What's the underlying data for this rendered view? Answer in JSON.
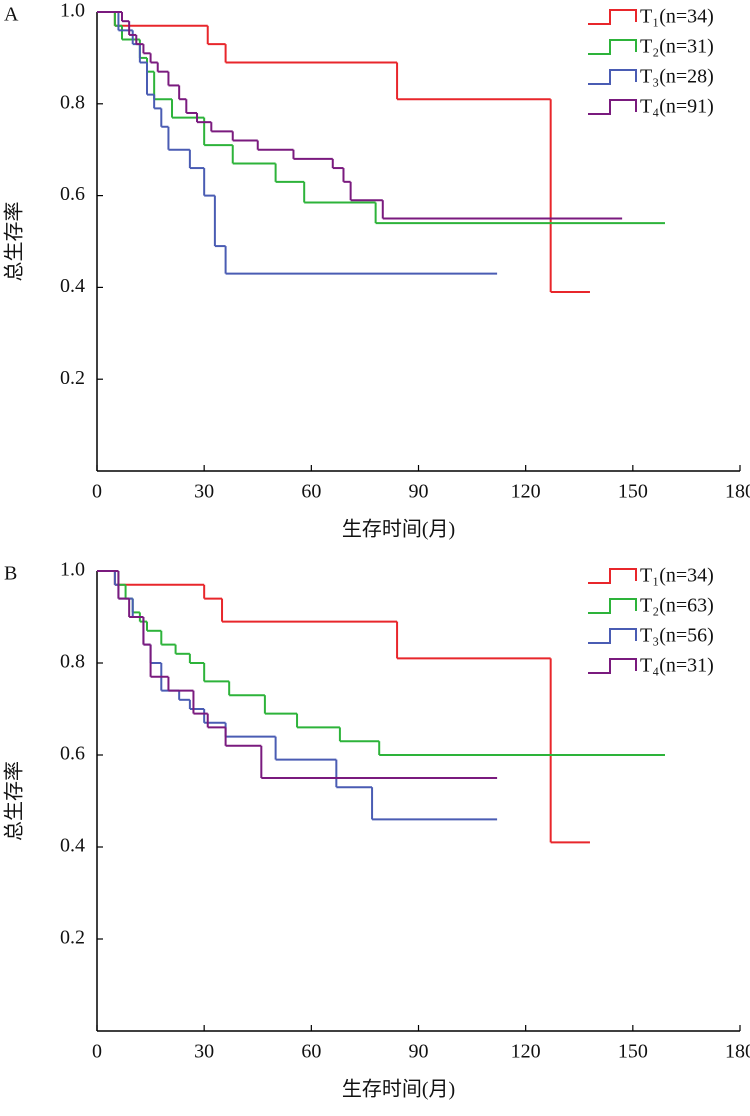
{
  "chart_data": [
    {
      "type": "line",
      "step": "post",
      "panel": "A",
      "xlabel": "生存时间(月)",
      "ylabel": "总生存率",
      "xlim": [
        0,
        180
      ],
      "xticks": [
        0,
        30,
        60,
        90,
        120,
        150,
        180
      ],
      "ylim": [
        0,
        1
      ],
      "yticks": [
        0.2,
        0.4,
        0.6,
        0.8,
        {
          "value": 1,
          "label": "1.0"
        }
      ],
      "legend": "upper right",
      "series": [
        {
          "name": "T₁(n=34)",
          "color": "#e8262b",
          "x": [
            0,
            5,
            31,
            36,
            84,
            127,
            138
          ],
          "values": [
            1,
            0.97,
            0.93,
            0.89,
            0.81,
            0.39,
            0.39
          ]
        },
        {
          "name": "T₂(n=31)",
          "color": "#2db33a",
          "x": [
            0,
            5,
            7,
            12,
            14,
            16,
            21,
            30,
            38,
            50,
            58,
            78,
            159
          ],
          "values": [
            1,
            0.97,
            0.94,
            0.9,
            0.87,
            0.81,
            0.77,
            0.71,
            0.67,
            0.63,
            0.585,
            0.54,
            0.54
          ]
        },
        {
          "name": "T₃(n=28)",
          "color": "#4a5cb3",
          "x": [
            0,
            6,
            10,
            12,
            14,
            16,
            18,
            20,
            26,
            30,
            33,
            36,
            112
          ],
          "values": [
            1,
            0.96,
            0.93,
            0.89,
            0.82,
            0.79,
            0.75,
            0.7,
            0.66,
            0.6,
            0.49,
            0.43,
            0.43
          ]
        },
        {
          "name": "T₄(n=91)",
          "color": "#7a1a7e",
          "x": [
            0,
            7,
            9,
            11,
            13,
            15,
            17,
            20,
            23,
            25,
            28,
            32,
            38,
            45,
            55,
            66,
            69,
            71,
            80,
            147
          ],
          "values": [
            1,
            0.98,
            0.95,
            0.93,
            0.91,
            0.89,
            0.87,
            0.84,
            0.81,
            0.78,
            0.76,
            0.74,
            0.72,
            0.7,
            0.68,
            0.66,
            0.63,
            0.59,
            0.55,
            0.55
          ]
        }
      ]
    },
    {
      "type": "line",
      "step": "post",
      "panel": "B",
      "xlabel": "生存时间(月)",
      "ylabel": "总生存率",
      "xlim": [
        0,
        180
      ],
      "xticks": [
        0,
        30,
        60,
        90,
        120,
        150,
        180
      ],
      "ylim": [
        0,
        1
      ],
      "yticks": [
        0.2,
        0.4,
        0.6,
        0.8,
        {
          "value": 1,
          "label": "1.0"
        }
      ],
      "legend": "upper right",
      "series": [
        {
          "name": "T₁(n=34)",
          "color": "#e8262b",
          "x": [
            0,
            5,
            30,
            35,
            84,
            127,
            138
          ],
          "values": [
            1,
            0.97,
            0.94,
            0.89,
            0.81,
            0.41,
            0.41
          ]
        },
        {
          "name": "T₂(n=63)",
          "color": "#2db33a",
          "x": [
            0,
            6,
            8,
            10,
            12,
            14,
            18,
            22,
            26,
            30,
            37,
            47,
            56,
            68,
            79,
            159
          ],
          "values": [
            1,
            0.97,
            0.94,
            0.91,
            0.89,
            0.87,
            0.84,
            0.82,
            0.8,
            0.76,
            0.73,
            0.69,
            0.66,
            0.63,
            0.6,
            0.6
          ]
        },
        {
          "name": "T₃(n=56)",
          "color": "#4a5cb3",
          "x": [
            0,
            5,
            6,
            10,
            13,
            15,
            18,
            23,
            26,
            30,
            36,
            50,
            67,
            77,
            112
          ],
          "values": [
            1,
            0.97,
            0.94,
            0.9,
            0.84,
            0.8,
            0.74,
            0.72,
            0.7,
            0.67,
            0.64,
            0.59,
            0.53,
            0.46,
            0.46
          ]
        },
        {
          "name": "T₄(n=31)",
          "color": "#7a1a7e",
          "x": [
            0,
            6,
            9,
            13,
            15,
            20,
            27,
            31,
            36,
            46,
            112
          ],
          "values": [
            1,
            0.94,
            0.9,
            0.84,
            0.77,
            0.74,
            0.69,
            0.66,
            0.62,
            0.55,
            0.55
          ]
        }
      ]
    }
  ]
}
